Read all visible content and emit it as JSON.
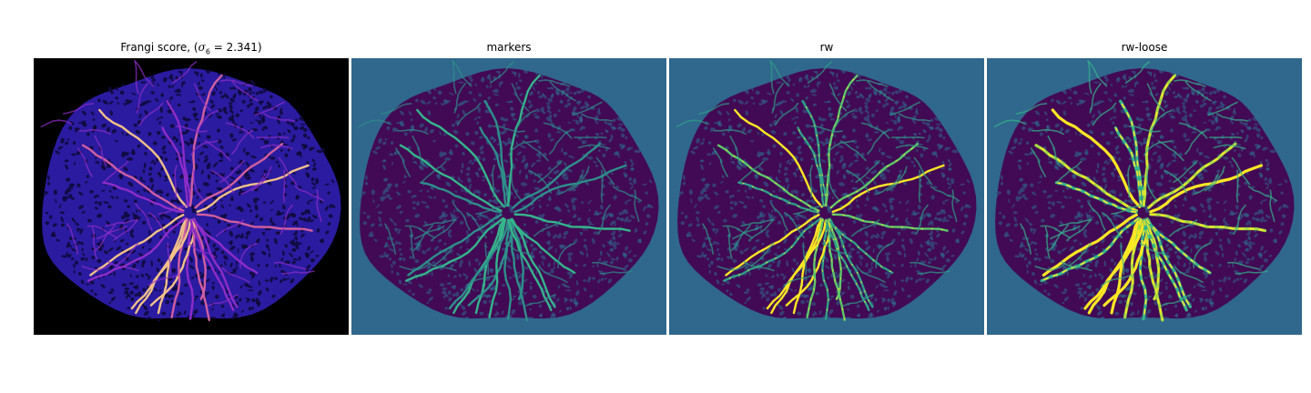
{
  "figure": {
    "panels": [
      {
        "key": "frangi",
        "title_prefix": "Frangi score, (",
        "title_symbol": "σ",
        "title_sub": "6",
        "title_suffix": " = 2.341)",
        "background": "#000000",
        "disc": "#2a1ba0",
        "dots": "#0f0a3c",
        "vessels": [
          "#5b1cc4",
          "#8e2cc9",
          "#d05fa0",
          "#f2c08a"
        ]
      },
      {
        "key": "markers",
        "title": "markers",
        "background": "#30678c",
        "disc": "#420a54",
        "dots": "#30678c",
        "vessels": [
          "#30678c",
          "#2e8f8a",
          "#35b58b"
        ]
      },
      {
        "key": "rw",
        "title": "rw",
        "background": "#30678c",
        "disc": "#420a54",
        "dots": "#30678c",
        "vessels": [
          "#30678c",
          "#2e9f87",
          "#5cc86a",
          "#fde725"
        ]
      },
      {
        "key": "rw-loose",
        "title": "rw-loose",
        "background": "#30678c",
        "disc": "#420a54",
        "dots": "#30678c",
        "vessels": [
          "#30678c",
          "#35b58b",
          "#a3d944",
          "#fde725"
        ]
      }
    ]
  }
}
